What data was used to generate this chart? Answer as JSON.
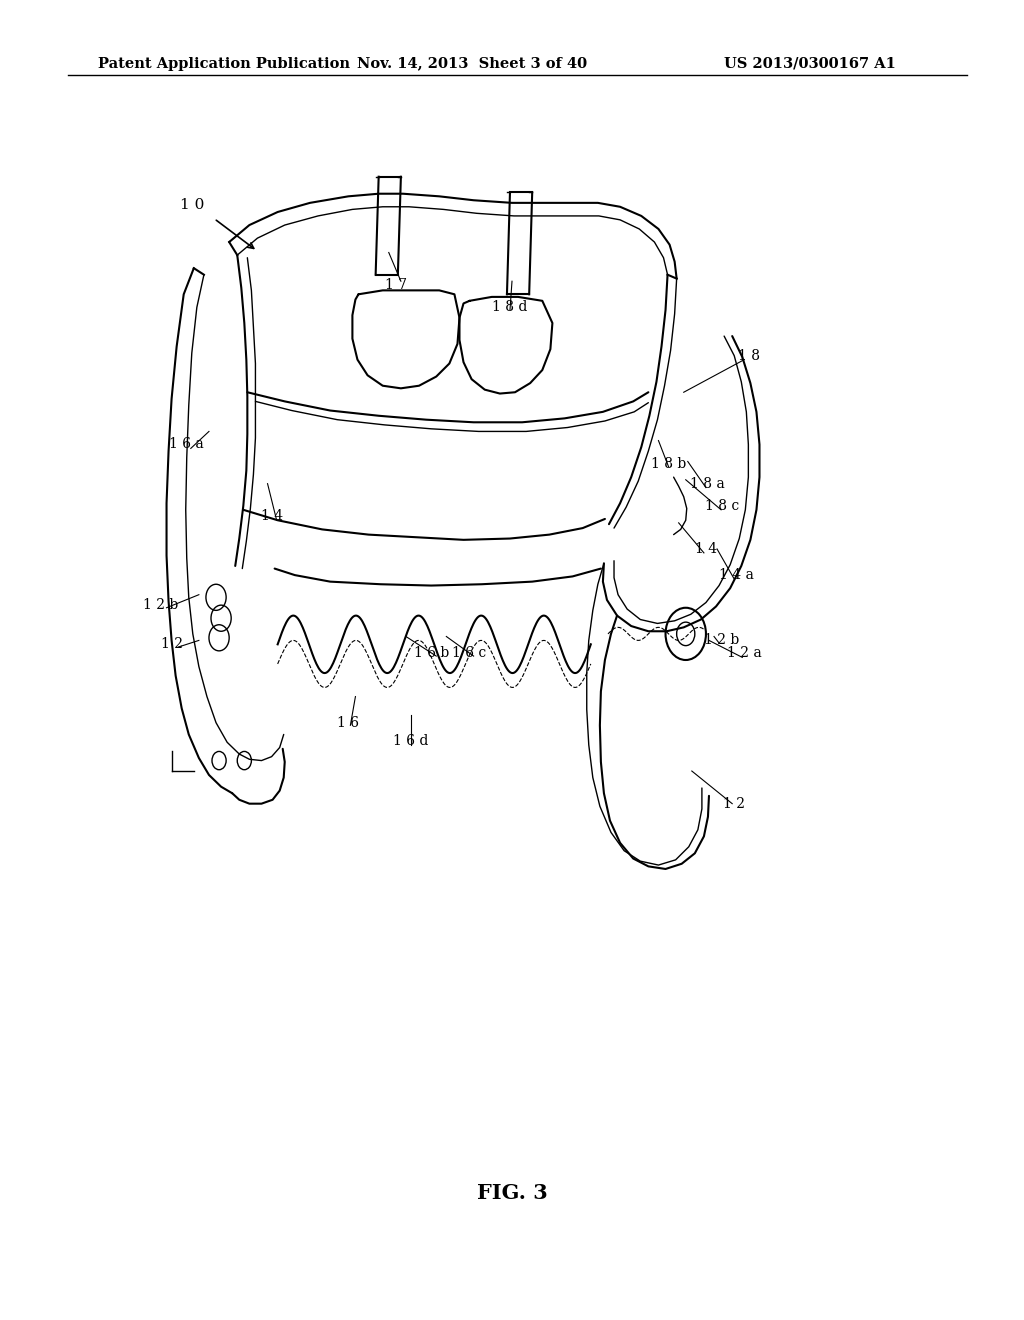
{
  "background_color": "#ffffff",
  "header_left": "Patent Application Publication",
  "header_mid": "Nov. 14, 2013  Sheet 3 of 40",
  "header_right": "US 2013/0300167 A1",
  "figure_label": "FIG. 3"
}
